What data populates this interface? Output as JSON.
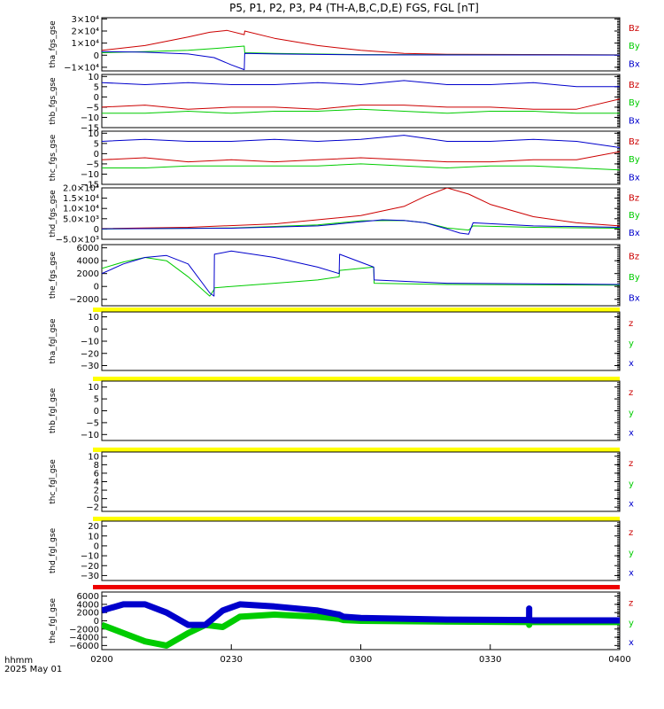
{
  "title": "P5, P1, P2, P3, P4 (TH-A,B,C,D,E) FGS, FGL [nT]",
  "footer": {
    "line1": "hhmm",
    "line2": "2025 May 01"
  },
  "colors": {
    "red": "#cc0000",
    "green": "#00cc00",
    "blue": "#0000cc",
    "yellow": "#ffff00",
    "bar_red": "#ee0000"
  },
  "x_ticks": [
    "0200",
    "0230",
    "0300",
    "0330",
    "0400"
  ],
  "chart_data": [
    {
      "type": "line",
      "ylabel": "tha_fgs_gse",
      "ytick_labels": [
        "3×10⁴",
        "2×10⁴",
        "1×10⁴",
        "0",
        "−1×10⁴"
      ],
      "ytick_values": [
        30000,
        20000,
        10000,
        0,
        -10000
      ],
      "ylim": [
        -13000,
        31000
      ],
      "legend": [
        "Bz",
        "By",
        "Bx"
      ],
      "series": [
        {
          "name": "Bz",
          "color": "red",
          "x": [
            0,
            10,
            20,
            25,
            29,
            33,
            33.1,
            40,
            50,
            60,
            70,
            80,
            120
          ],
          "y": [
            4000,
            8000,
            15000,
            19000,
            20500,
            17000,
            20000,
            14000,
            8000,
            4000,
            1500,
            800,
            300
          ]
        },
        {
          "name": "By",
          "color": "green",
          "x": [
            0,
            10,
            20,
            26,
            33,
            33.1,
            40,
            60,
            120
          ],
          "y": [
            2000,
            3000,
            4000,
            5500,
            7500,
            2000,
            1500,
            500,
            200
          ]
        },
        {
          "name": "Bx",
          "color": "blue",
          "x": [
            0,
            10,
            20,
            26,
            30,
            33,
            33.1,
            40,
            60,
            120
          ],
          "y": [
            3000,
            2500,
            1000,
            -2000,
            -8000,
            -12000,
            1500,
            1000,
            300,
            100
          ]
        }
      ]
    },
    {
      "type": "line",
      "ylabel": "thb_fgs_gse",
      "ytick_labels": [
        "10",
        "5",
        "0",
        "−5",
        "−10",
        "−15"
      ],
      "ytick_values": [
        10,
        5,
        0,
        -5,
        -10,
        -15
      ],
      "ylim": [
        -15,
        11
      ],
      "legend": [
        "Bz",
        "By",
        "Bx"
      ],
      "series": [
        {
          "name": "Bz",
          "color": "red",
          "x": [
            0,
            10,
            20,
            30,
            40,
            50,
            60,
            70,
            80,
            90,
            100,
            110,
            120
          ],
          "y": [
            -5,
            -4,
            -6,
            -5,
            -5,
            -6,
            -4,
            -4,
            -5,
            -5,
            -6,
            -6,
            -1
          ]
        },
        {
          "name": "By",
          "color": "green",
          "x": [
            0,
            10,
            20,
            30,
            40,
            50,
            60,
            70,
            80,
            90,
            100,
            110,
            120
          ],
          "y": [
            -8,
            -8,
            -7,
            -8,
            -7,
            -7,
            -6,
            -7,
            -8,
            -7,
            -7,
            -8,
            -8
          ]
        },
        {
          "name": "Bx",
          "color": "blue",
          "x": [
            0,
            10,
            20,
            30,
            40,
            50,
            60,
            70,
            80,
            90,
            100,
            110,
            120
          ],
          "y": [
            7,
            6,
            7,
            6,
            6,
            7,
            6,
            8,
            6,
            6,
            7,
            5,
            5
          ]
        }
      ]
    },
    {
      "type": "line",
      "ylabel": "thc_fgs_gse",
      "ytick_labels": [
        "10",
        "5",
        "0",
        "−5",
        "−10",
        "−15"
      ],
      "ytick_values": [
        10,
        5,
        0,
        -5,
        -10,
        -15
      ],
      "ylim": [
        -15,
        11
      ],
      "legend": [
        "Bz",
        "By",
        "Bx"
      ],
      "series": [
        {
          "name": "Bz",
          "color": "red",
          "x": [
            0,
            10,
            20,
            30,
            40,
            50,
            60,
            70,
            80,
            90,
            100,
            110,
            120
          ],
          "y": [
            -3,
            -2,
            -4,
            -3,
            -4,
            -3,
            -2,
            -3,
            -4,
            -4,
            -3,
            -3,
            1
          ]
        },
        {
          "name": "By",
          "color": "green",
          "x": [
            0,
            10,
            20,
            30,
            40,
            50,
            60,
            70,
            80,
            90,
            100,
            110,
            120
          ],
          "y": [
            -7,
            -7,
            -6,
            -6,
            -6,
            -6,
            -5,
            -6,
            -7,
            -6,
            -6,
            -7,
            -8
          ]
        },
        {
          "name": "Bx",
          "color": "blue",
          "x": [
            0,
            10,
            20,
            30,
            40,
            50,
            60,
            70,
            80,
            90,
            100,
            110,
            120
          ],
          "y": [
            6,
            7,
            6,
            6,
            7,
            6,
            7,
            9,
            6,
            6,
            7,
            6,
            3
          ]
        }
      ]
    },
    {
      "type": "line",
      "ylabel": "thd_fgs_gse",
      "ytick_labels": [
        "2.0×10⁴",
        "1.5×10⁴",
        "1.0×10⁴",
        "5.0×10³",
        "0",
        "−5.0×10³"
      ],
      "ytick_values": [
        20000,
        15000,
        10000,
        5000,
        0,
        -5000
      ],
      "ylim": [
        -5000,
        20000
      ],
      "legend": [
        "Bz",
        "By",
        "Bx"
      ],
      "series": [
        {
          "name": "Bz",
          "color": "red",
          "x": [
            0,
            20,
            40,
            60,
            70,
            75,
            80,
            85,
            90,
            100,
            110,
            120
          ],
          "y": [
            200,
            800,
            2500,
            6500,
            11000,
            16000,
            20000,
            17000,
            12000,
            6000,
            3000,
            1500
          ]
        },
        {
          "name": "By",
          "color": "green",
          "x": [
            0,
            30,
            50,
            60,
            70,
            75,
            80,
            85,
            86,
            100,
            120
          ],
          "y": [
            0,
            500,
            2000,
            4000,
            4200,
            3000,
            500,
            -500,
            1500,
            800,
            400
          ]
        },
        {
          "name": "Bx",
          "color": "blue",
          "x": [
            0,
            30,
            50,
            60,
            65,
            70,
            75,
            80,
            83,
            85,
            86,
            100,
            120
          ],
          "y": [
            100,
            400,
            1500,
            3500,
            4500,
            4200,
            3000,
            0,
            -2000,
            -2500,
            3000,
            1500,
            800
          ]
        }
      ]
    },
    {
      "type": "line",
      "ylabel": "the_fgs_gse",
      "ytick_labels": [
        "6000",
        "4000",
        "2000",
        "0",
        "−2000"
      ],
      "ytick_values": [
        6000,
        4000,
        2000,
        0,
        -2000
      ],
      "ylim": [
        -3000,
        6500
      ],
      "legend": [
        "Bz",
        "By",
        "Bx"
      ],
      "series": [
        {
          "name": "By",
          "color": "green",
          "x": [
            0,
            5,
            10,
            15,
            20,
            25,
            26,
            26.1,
            30,
            40,
            50,
            55,
            55.1,
            63,
            63.1,
            80,
            120
          ],
          "y": [
            2800,
            3800,
            4500,
            4000,
            1500,
            -1500,
            -500,
            -200,
            0,
            500,
            1000,
            1500,
            2500,
            3000,
            500,
            300,
            200
          ]
        },
        {
          "name": "Bx",
          "color": "blue",
          "x": [
            0,
            5,
            10,
            15,
            20,
            25,
            26,
            26.1,
            30,
            40,
            50,
            55,
            55.1,
            63,
            63.1,
            80,
            120
          ],
          "y": [
            2000,
            3500,
            4500,
            4800,
            3500,
            -1000,
            -1500,
            5000,
            5500,
            4500,
            3000,
            2000,
            5000,
            3000,
            1000,
            500,
            300
          ]
        }
      ]
    },
    {
      "type": "line",
      "ylabel": "tha_fgl_gse",
      "ytick_labels": [
        "10",
        "0",
        "−10",
        "−20",
        "−30"
      ],
      "ytick_values": [
        10,
        0,
        -10,
        -20,
        -30
      ],
      "ylim": [
        -34,
        14
      ],
      "legend": [
        "z",
        "y",
        "x"
      ],
      "status_bar": "yellow",
      "series": []
    },
    {
      "type": "line",
      "ylabel": "thb_fgl_gse",
      "ytick_labels": [
        "10",
        "5",
        "0",
        "−5",
        "−10"
      ],
      "ytick_values": [
        10,
        5,
        0,
        -5,
        -10
      ],
      "ylim": [
        -12.5,
        12.5
      ],
      "legend": [
        "z",
        "y",
        "x"
      ],
      "status_bar": "yellow",
      "series": []
    },
    {
      "type": "line",
      "ylabel": "thc_fgl_gse",
      "ytick_labels": [
        "10",
        "8",
        "6",
        "4",
        "2",
        "0",
        "−2"
      ],
      "ytick_values": [
        10,
        8,
        6,
        4,
        2,
        0,
        -2
      ],
      "ylim": [
        -3,
        11
      ],
      "legend": [
        "z",
        "y",
        "x"
      ],
      "status_bar": "yellow",
      "series": []
    },
    {
      "type": "line",
      "ylabel": "thd_fgl_gse",
      "ytick_labels": [
        "20",
        "10",
        "0",
        "−10",
        "−20",
        "−30"
      ],
      "ytick_values": [
        20,
        10,
        0,
        -10,
        -20,
        -30
      ],
      "ylim": [
        -35,
        25
      ],
      "legend": [
        "z",
        "y",
        "x"
      ],
      "status_bar": "yellow",
      "series": []
    },
    {
      "type": "line",
      "ylabel": "the_fgl_gse",
      "ytick_labels": [
        "6000",
        "4000",
        "2000",
        "0",
        "−2000",
        "−4000",
        "−6000"
      ],
      "ytick_values": [
        6000,
        4000,
        2000,
        0,
        -2000,
        -4000,
        -6000
      ],
      "ylim": [
        -7000,
        7000
      ],
      "legend": [
        "z",
        "y",
        "x"
      ],
      "status_bar": "bar_red",
      "series": [
        {
          "name": "y",
          "color": "green",
          "width": 7,
          "x": [
            0,
            5,
            10,
            15,
            20,
            24,
            28,
            32,
            40,
            50,
            55,
            56,
            60,
            80,
            99,
            99.01,
            99.02,
            100,
            120
          ],
          "y": [
            -1000,
            -3000,
            -5000,
            -6000,
            -3000,
            -1000,
            -1500,
            1000,
            1500,
            1000,
            500,
            200,
            0,
            -200,
            -300,
            -1000,
            -300,
            -300,
            -300
          ]
        },
        {
          "name": "x",
          "color": "blue",
          "width": 7,
          "x": [
            0,
            5,
            10,
            15,
            20,
            24,
            28,
            32,
            40,
            50,
            55,
            56,
            60,
            80,
            99,
            99.01,
            99.02,
            100,
            120
          ],
          "y": [
            2500,
            4000,
            4000,
            2000,
            -1000,
            -1000,
            2500,
            4000,
            3500,
            2500,
            1500,
            1000,
            700,
            300,
            200,
            3000,
            200,
            100,
            100
          ]
        }
      ]
    }
  ]
}
